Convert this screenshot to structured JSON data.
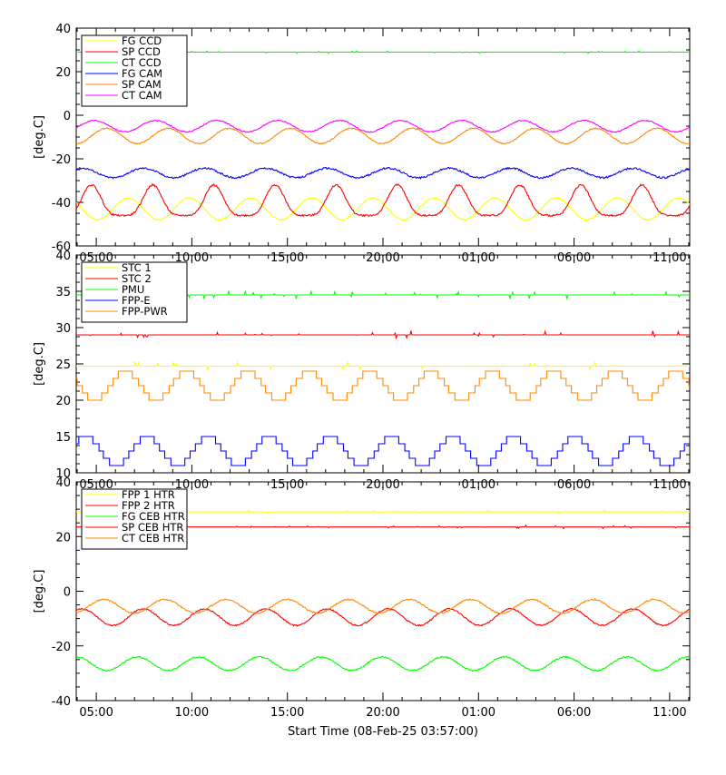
{
  "xaxis_title": "Start Time (08-Feb-25 03:57:00)",
  "x_tick_labels": [
    "05:00",
    "10:00",
    "15:00",
    "20:00",
    "01:00",
    "06:00",
    "11:00"
  ],
  "colors": {
    "yellow": "#ffff00",
    "red": "#ff0000",
    "green": "#00ff00",
    "blue": "#0000ff",
    "orange": "#ff8800",
    "magenta": "#ff00ff"
  },
  "chart_data": [
    {
      "type": "line",
      "ylabel": "[deg.C]",
      "ylim": [
        -60,
        40
      ],
      "yticks": [
        -60,
        -40,
        -20,
        0,
        20,
        40
      ],
      "x_hours_range": [
        0,
        7.98
      ],
      "legend_position": "top-left",
      "series": [
        {
          "name": "FG CCD",
          "color": "yellow",
          "shape": "sine",
          "mean": -43,
          "amplitude": 5,
          "period_h": 1.6,
          "phase": 0.8
        },
        {
          "name": "SP CCD",
          "color": "red",
          "shape": "peaked",
          "min": -46,
          "max": -32,
          "period_h": 1.6,
          "phase": 0.0
        },
        {
          "name": "CT CCD",
          "color": "green",
          "shape": "flat",
          "mean": 29
        },
        {
          "name": "FG CAM",
          "color": "blue",
          "shape": "sine",
          "mean": -26.5,
          "amplitude": 2.2,
          "period_h": 1.6,
          "phase": 0.3,
          "noise": 0.8
        },
        {
          "name": "SP CAM",
          "color": "orange",
          "shape": "sine",
          "mean": -9.5,
          "amplitude": 3.5,
          "period_h": 1.6,
          "phase": 1.5
        },
        {
          "name": "CT CAM",
          "color": "magenta",
          "shape": "sine",
          "mean": -5,
          "amplitude": 2.6,
          "period_h": 1.6,
          "phase": 1.9
        }
      ]
    },
    {
      "type": "line",
      "ylabel": "[deg.C]",
      "ylim": [
        10,
        40
      ],
      "yticks": [
        10,
        15,
        20,
        25,
        30,
        35,
        40
      ],
      "x_hours_range": [
        0,
        7.98
      ],
      "legend_position": "top-left",
      "series": [
        {
          "name": "STC 1",
          "color": "yellow",
          "shape": "flat",
          "mean": 24.7
        },
        {
          "name": "STC 2",
          "color": "red",
          "shape": "flat",
          "mean": 29.0
        },
        {
          "name": "PMU",
          "color": "green",
          "shape": "flat",
          "mean": 34.5
        },
        {
          "name": "FPP-E",
          "color": "blue",
          "shape": "steps",
          "min": 11,
          "max": 15,
          "period_h": 1.6,
          "phase": 0.2
        },
        {
          "name": "FPP-PWR",
          "color": "orange",
          "shape": "steps",
          "min": 20,
          "max": 24,
          "period_h": 1.6,
          "phase": 0.9
        }
      ]
    },
    {
      "type": "line",
      "ylabel": "[deg.C]",
      "ylim": [
        -40,
        40
      ],
      "yticks": [
        -40,
        -20,
        0,
        20,
        40
      ],
      "x_hours_range": [
        0,
        7.98
      ],
      "legend_position": "top-left",
      "series": [
        {
          "name": "FPP 1 HTR",
          "color": "yellow",
          "shape": "flat",
          "mean": 29
        },
        {
          "name": "FPP 2 HTR",
          "color": "red",
          "shape": "flat",
          "mean": 23.5
        },
        {
          "name": "FG CEB HTR",
          "color": "green",
          "shape": "sine",
          "mean": -26.5,
          "amplitude": 2.5,
          "period_h": 1.6,
          "phase": 0.5
        },
        {
          "name": "SP CEB HTR",
          "color": "red",
          "shape": "sine",
          "mean": -9.5,
          "amplitude": 3.0,
          "period_h": 1.6,
          "phase": 0.3
        },
        {
          "name": "CT CEB HTR",
          "color": "orange",
          "shape": "sine",
          "mean": -5.5,
          "amplitude": 2.5,
          "period_h": 1.6,
          "phase": 1.6
        }
      ]
    }
  ]
}
